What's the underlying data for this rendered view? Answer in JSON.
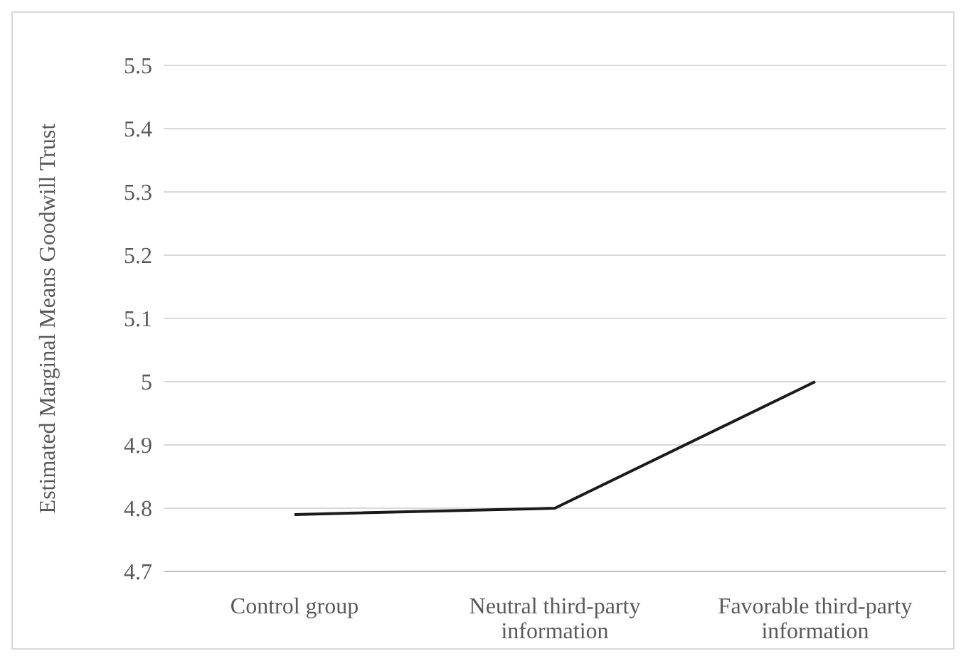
{
  "chart_data": {
    "type": "line",
    "ylabel": "Estimated Marginal Means Goodwill Trust",
    "categories": [
      "Control group",
      "Neutral third-party information",
      "Favorable third-party information"
    ],
    "series": [
      {
        "color": "#1a1a1a",
        "values": [
          4.79,
          4.8,
          5.0
        ]
      }
    ],
    "ylim": [
      4.7,
      5.5
    ],
    "yticks": [
      4.7,
      4.8,
      4.9,
      5,
      5.1,
      5.2,
      5.3,
      5.4,
      5.5
    ],
    "grid": "y",
    "legend": false,
    "marker": "none",
    "line_style": "solid"
  }
}
